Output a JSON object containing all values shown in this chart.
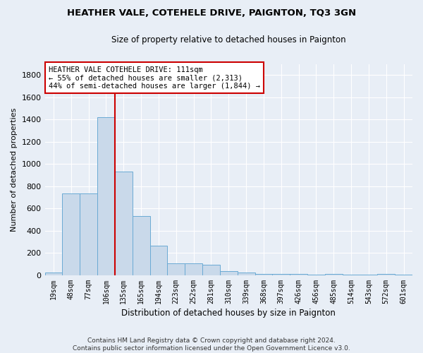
{
  "title": "HEATHER VALE, COTEHELE DRIVE, PAIGNTON, TQ3 3GN",
  "subtitle": "Size of property relative to detached houses in Paignton",
  "xlabel": "Distribution of detached houses by size in Paignton",
  "ylabel": "Number of detached properties",
  "bar_color": "#c9d9ea",
  "bar_edge_color": "#6aaad4",
  "bg_color": "#e8eef6",
  "grid_color": "#ffffff",
  "fig_color": "#e8eef6",
  "categories": [
    "19sqm",
    "48sqm",
    "77sqm",
    "106sqm",
    "135sqm",
    "165sqm",
    "194sqm",
    "223sqm",
    "252sqm",
    "281sqm",
    "310sqm",
    "339sqm",
    "368sqm",
    "397sqm",
    "426sqm",
    "456sqm",
    "485sqm",
    "514sqm",
    "543sqm",
    "572sqm",
    "601sqm"
  ],
  "values": [
    25,
    735,
    735,
    1420,
    935,
    530,
    265,
    110,
    110,
    95,
    35,
    25,
    15,
    15,
    10,
    5,
    15,
    5,
    5,
    10,
    5
  ],
  "ylim": [
    0,
    1900
  ],
  "yticks": [
    0,
    200,
    400,
    600,
    800,
    1000,
    1200,
    1400,
    1600,
    1800
  ],
  "property_line_color": "#cc0000",
  "property_line_index": 3,
  "annotation_text": "HEATHER VALE COTEHELE DRIVE: 111sqm\n← 55% of detached houses are smaller (2,313)\n44% of semi-detached houses are larger (1,844) →",
  "annotation_box_color": "#ffffff",
  "annotation_box_edge": "#cc0000",
  "footer": "Contains HM Land Registry data © Crown copyright and database right 2024.\nContains public sector information licensed under the Open Government Licence v3.0."
}
